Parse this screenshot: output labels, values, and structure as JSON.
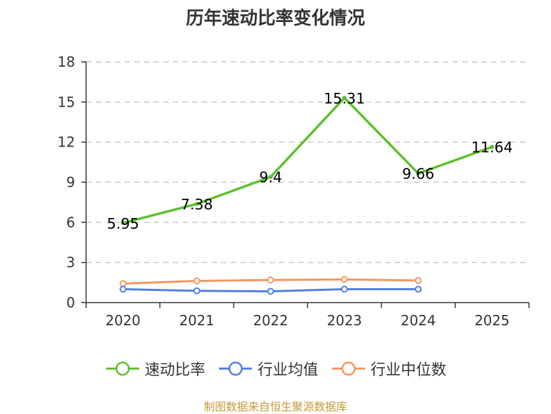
{
  "chart_data": {
    "type": "line",
    "title": "历年速动比率变化情况",
    "categories": [
      "2020",
      "2021",
      "2022",
      "2023",
      "2024",
      "2025"
    ],
    "ylim": [
      0,
      18
    ],
    "yticks": [
      "0",
      "3",
      "6",
      "9",
      "12",
      "15",
      "18"
    ],
    "grid": true,
    "legend_position": "bottom",
    "series": [
      {
        "name": "速动比率",
        "color": "#5ac12b",
        "values": [
          5.95,
          7.38,
          9.4,
          15.31,
          9.66,
          11.64
        ],
        "labels": [
          "5.95",
          "7.38",
          "9.4",
          "15.31",
          "9.66",
          "11.64"
        ]
      },
      {
        "name": "行业均值",
        "color": "#4f7fdc",
        "values": [
          1.0,
          0.88,
          0.84,
          1.0,
          1.0,
          null
        ]
      },
      {
        "name": "行业中位数",
        "color": "#f5955f",
        "values": [
          1.42,
          1.62,
          1.69,
          1.73,
          1.65,
          null
        ]
      }
    ]
  },
  "source": "制图数据来自恒生聚源数据库"
}
